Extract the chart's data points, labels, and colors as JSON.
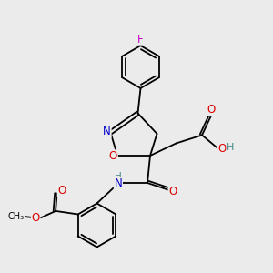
{
  "bg_color": "#ebebeb",
  "atom_colors": {
    "C": "#000000",
    "N": "#0000cc",
    "O": "#dd0000",
    "F": "#cc00cc",
    "H": "#448888"
  },
  "font_size_atom": 8.5,
  "font_size_small": 7.0,
  "lw": 1.3,
  "figsize": [
    3.0,
    3.0
  ],
  "dpi": 100
}
